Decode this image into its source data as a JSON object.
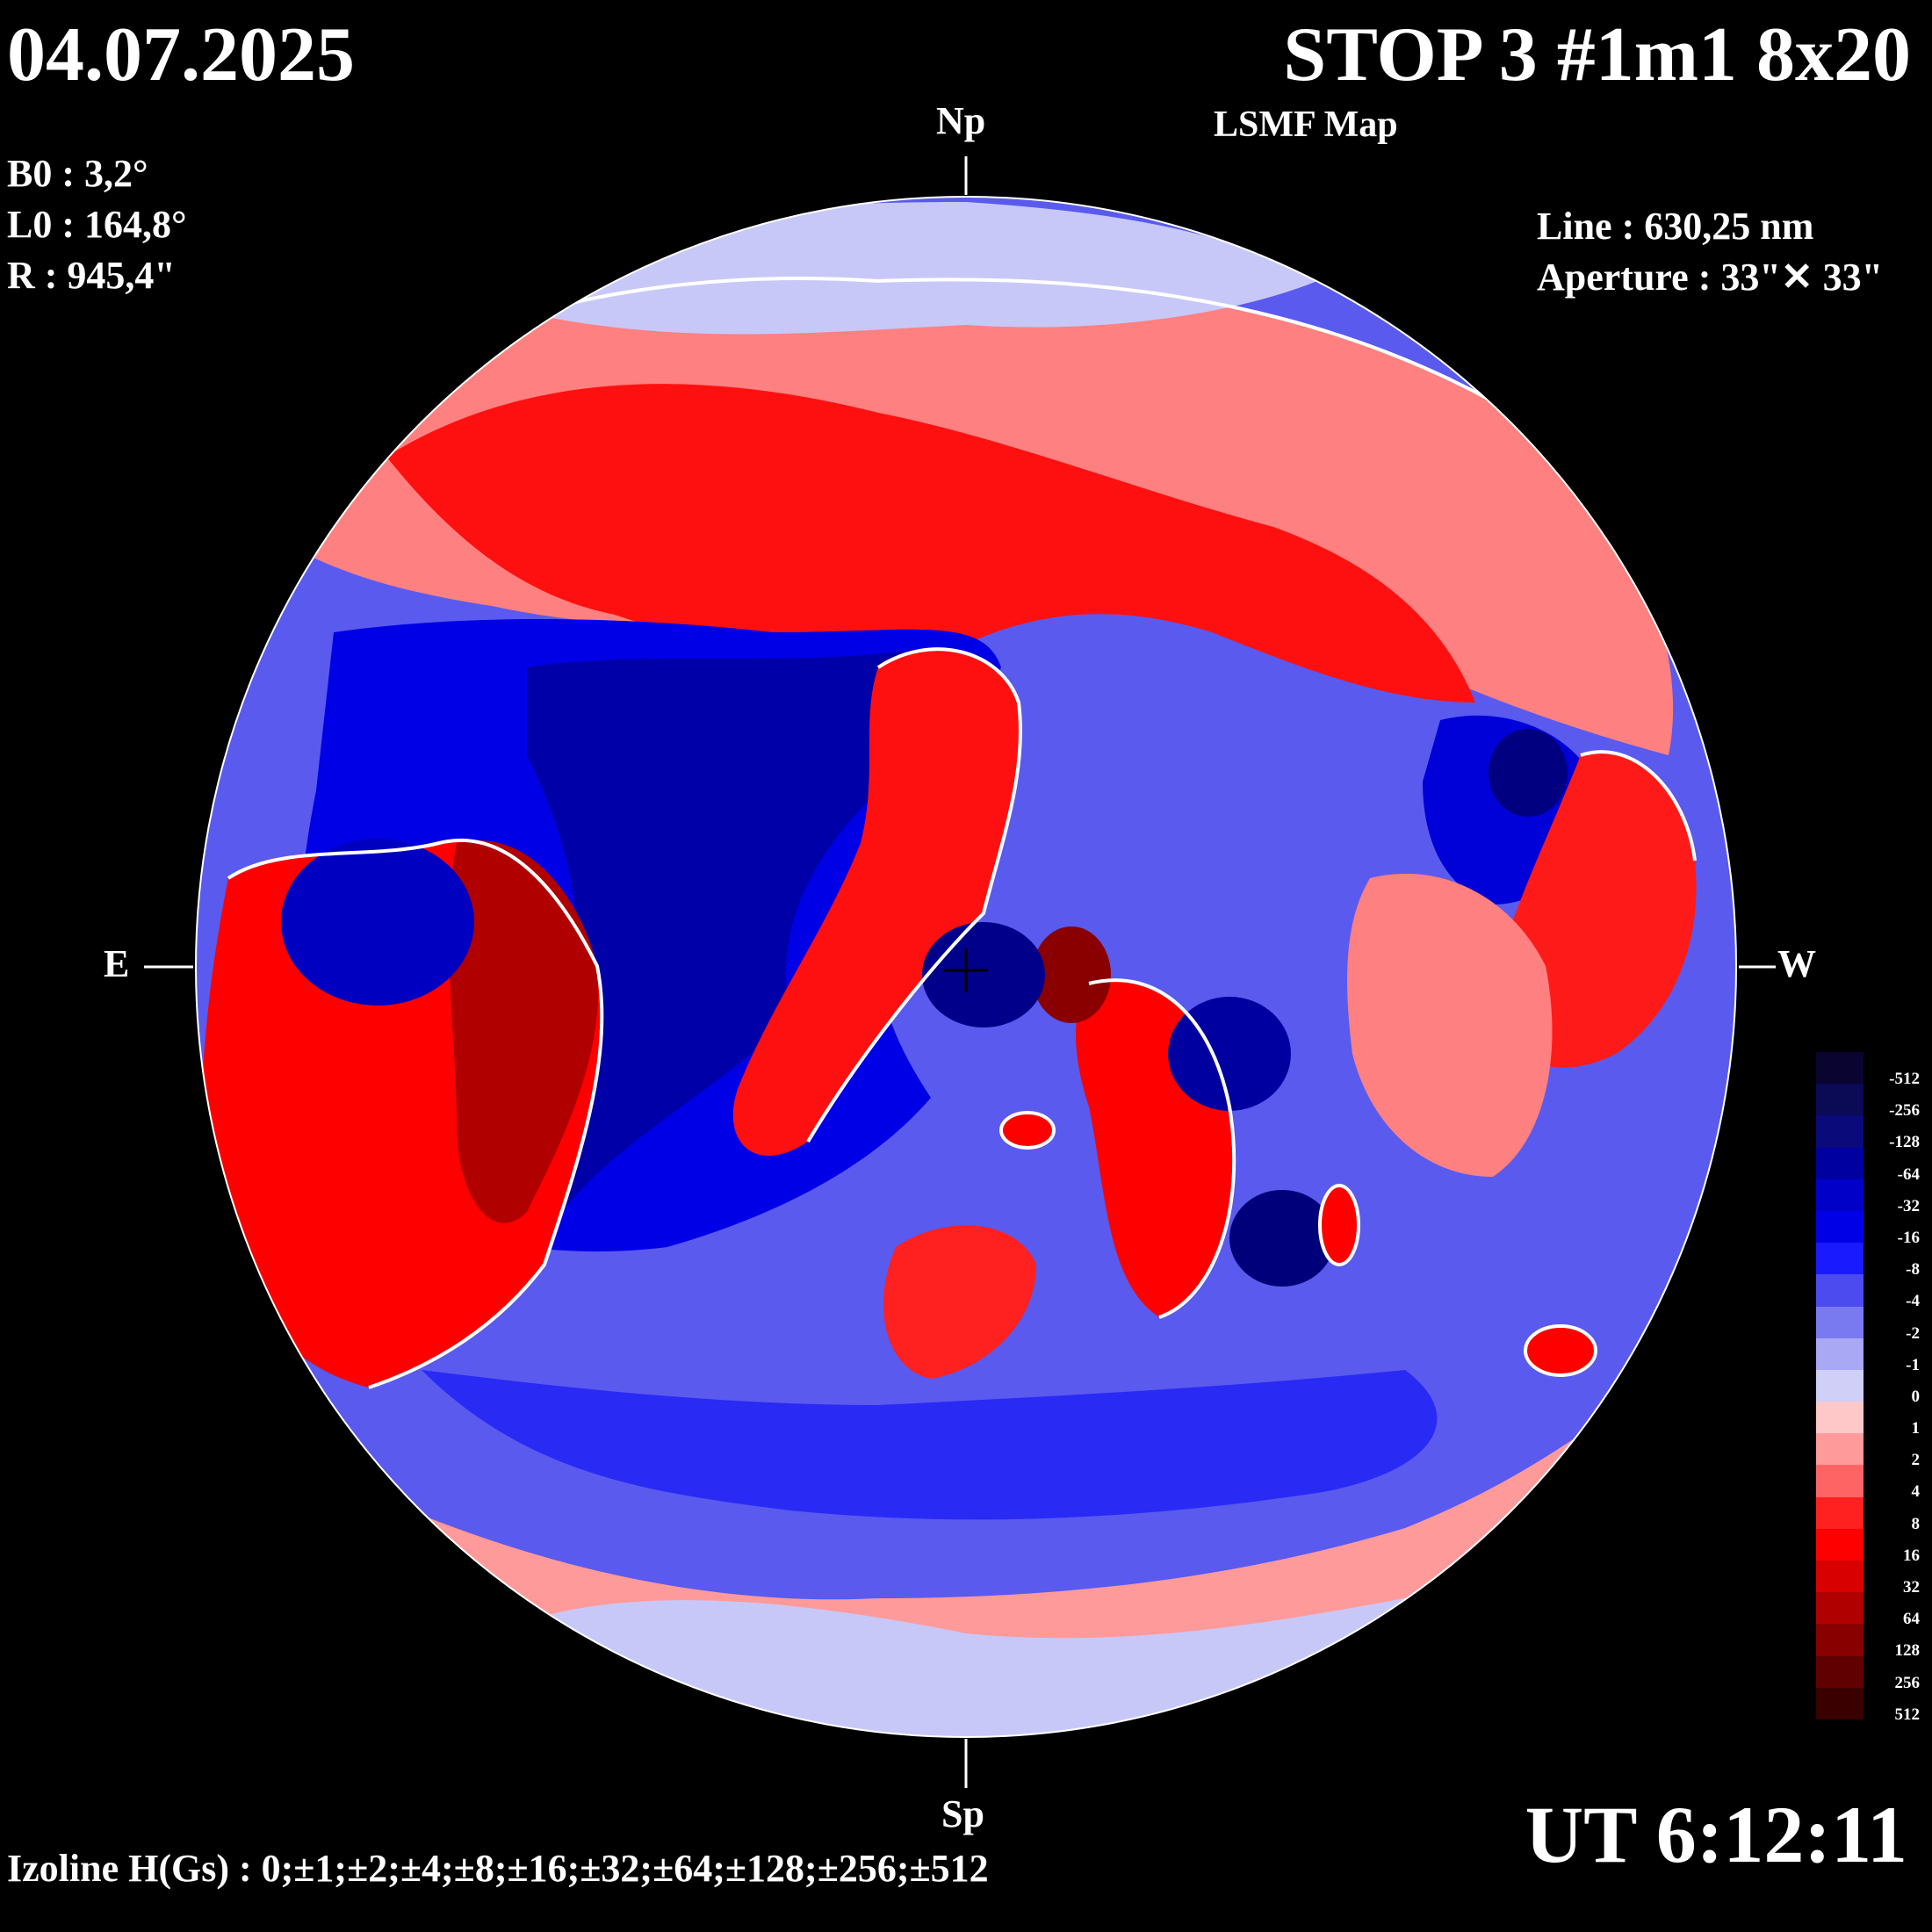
{
  "header": {
    "date": "04.07.2025",
    "title": "STOP 3 #1m1 8x20",
    "subtitle": "LSMF  Map"
  },
  "params": {
    "b0": "B0 : 3,2°",
    "l0": "L0 : 164,8°",
    "r": "R  : 945,4\"",
    "line": "Line :  630,25 nm",
    "aperture": "Aperture : 33\"✕ 33\""
  },
  "compass": {
    "north": "Np",
    "south": "Sp",
    "east": "E",
    "west": "W"
  },
  "footer": {
    "izoline": "Izoline H(Gs) : 0;±1;±2;±4;±8;±16;±32;±64;±128;±256;±512",
    "ut": "UT 6:12:11"
  },
  "legend": {
    "levels": [
      {
        "label": "-512",
        "color": "#0a0530"
      },
      {
        "label": "-256",
        "color": "#0a0a55"
      },
      {
        "label": "-128",
        "color": "#0a0a7a"
      },
      {
        "label": "-64",
        "color": "#0000a0"
      },
      {
        "label": "-32",
        "color": "#0000c8"
      },
      {
        "label": "-16",
        "color": "#0000e6"
      },
      {
        "label": "-8",
        "color": "#1a1aff"
      },
      {
        "label": "-4",
        "color": "#4b4bf0"
      },
      {
        "label": "-2",
        "color": "#7a7af0"
      },
      {
        "label": "-1",
        "color": "#a8a8f5"
      },
      {
        "label": "0",
        "color": "#cfcff8"
      },
      {
        "label": "1",
        "color": "#ffc8c8"
      },
      {
        "label": "2",
        "color": "#ff9a9a"
      },
      {
        "label": "4",
        "color": "#ff6464"
      },
      {
        "label": "8",
        "color": "#ff2020"
      },
      {
        "label": "16",
        "color": "#ff0000"
      },
      {
        "label": "32",
        "color": "#d80000"
      },
      {
        "label": "64",
        "color": "#b00000"
      },
      {
        "label": "128",
        "color": "#880000"
      },
      {
        "label": "256",
        "color": "#600000"
      },
      {
        "label": "512",
        "color": "#3a0000"
      }
    ]
  },
  "map_colors": {
    "neg_strong": "#00007a",
    "neg": "#0000e6",
    "neg_weak": "#6b6bf0",
    "neutral_neg": "#c8c8f8",
    "neutral_pos": "#ffc8c8",
    "pos_weak": "#ff7070",
    "pos": "#ff0000",
    "pos_strong": "#a00000",
    "isoline": "#ffffff"
  }
}
